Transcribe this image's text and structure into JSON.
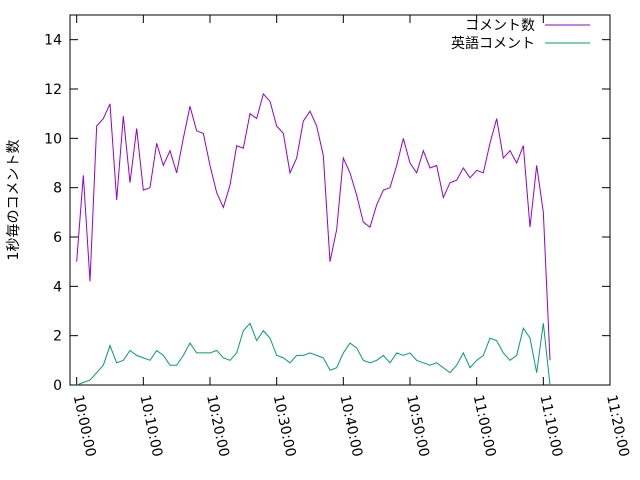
{
  "chart_data": {
    "type": "line",
    "ylabel": "1秒毎のコメント数",
    "x": [
      "10:00:00",
      "10:01:00",
      "10:02:00",
      "10:03:00",
      "10:04:00",
      "10:05:00",
      "10:06:00",
      "10:07:00",
      "10:08:00",
      "10:09:00",
      "10:10:00",
      "10:11:00",
      "10:12:00",
      "10:13:00",
      "10:14:00",
      "10:15:00",
      "10:16:00",
      "10:17:00",
      "10:18:00",
      "10:19:00",
      "10:20:00",
      "10:21:00",
      "10:22:00",
      "10:23:00",
      "10:24:00",
      "10:25:00",
      "10:26:00",
      "10:27:00",
      "10:28:00",
      "10:29:00",
      "10:30:00",
      "10:31:00",
      "10:32:00",
      "10:33:00",
      "10:34:00",
      "10:35:00",
      "10:36:00",
      "10:37:00",
      "10:38:00",
      "10:39:00",
      "10:40:00",
      "10:41:00",
      "10:42:00",
      "10:43:00",
      "10:44:00",
      "10:45:00",
      "10:46:00",
      "10:47:00",
      "10:48:00",
      "10:49:00",
      "10:50:00",
      "10:51:00",
      "10:52:00",
      "10:53:00",
      "10:54:00",
      "10:55:00",
      "10:56:00",
      "10:57:00",
      "10:58:00",
      "10:59:00",
      "11:00:00",
      "11:01:00",
      "11:02:00",
      "11:03:00",
      "11:04:00",
      "11:05:00",
      "11:06:00",
      "11:07:00",
      "11:08:00",
      "11:09:00",
      "11:10:00",
      "11:11:00"
    ],
    "series": [
      {
        "name": "コメント数",
        "color": "#9400d3",
        "values": [
          5.0,
          8.5,
          4.2,
          10.5,
          10.8,
          11.4,
          7.5,
          10.9,
          8.2,
          10.4,
          7.9,
          8.0,
          9.8,
          8.9,
          9.5,
          8.6,
          10.0,
          11.3,
          10.3,
          10.2,
          8.9,
          7.8,
          7.2,
          8.1,
          9.7,
          9.6,
          11.0,
          10.8,
          11.8,
          11.5,
          10.5,
          10.2,
          8.6,
          9.2,
          10.7,
          11.1,
          10.5,
          9.3,
          5.0,
          6.3,
          9.2,
          8.6,
          7.7,
          6.6,
          6.4,
          7.3,
          7.9,
          8.0,
          8.9,
          10.0,
          9.0,
          8.6,
          9.5,
          8.8,
          8.9,
          7.6,
          8.2,
          8.3,
          8.8,
          8.4,
          8.7,
          8.6,
          9.8,
          10.8,
          9.2,
          9.5,
          9.0,
          9.7,
          6.4,
          8.9,
          7.0,
          1.0
        ]
      },
      {
        "name": "英語コメント",
        "color": "#009e73",
        "values": [
          0.0,
          0.1,
          0.2,
          0.5,
          0.8,
          1.6,
          0.9,
          1.0,
          1.4,
          1.2,
          1.1,
          1.0,
          1.4,
          1.2,
          0.8,
          0.8,
          1.2,
          1.7,
          1.3,
          1.3,
          1.3,
          1.4,
          1.1,
          1.0,
          1.3,
          2.2,
          2.5,
          1.8,
          2.2,
          1.9,
          1.2,
          1.1,
          0.9,
          1.2,
          1.2,
          1.3,
          1.2,
          1.1,
          0.6,
          0.7,
          1.3,
          1.7,
          1.5,
          1.0,
          0.9,
          1.0,
          1.2,
          0.9,
          1.3,
          1.2,
          1.3,
          1.0,
          0.9,
          0.8,
          0.9,
          0.7,
          0.5,
          0.8,
          1.3,
          0.7,
          1.0,
          1.2,
          1.9,
          1.8,
          1.3,
          1.0,
          1.2,
          2.3,
          1.9,
          0.5,
          2.5,
          0.0
        ]
      }
    ],
    "xlim": [
      "09:59:00",
      "11:20:00"
    ],
    "xticks": [
      "10:00:00",
      "10:10:00",
      "10:20:00",
      "10:30:00",
      "10:40:00",
      "10:50:00",
      "11:00:00",
      "11:10:00",
      "11:20:00"
    ],
    "ylim": [
      0,
      15
    ],
    "yticks": [
      0,
      2,
      4,
      6,
      8,
      10,
      12,
      14
    ],
    "grid": false,
    "legend": "top-right"
  }
}
